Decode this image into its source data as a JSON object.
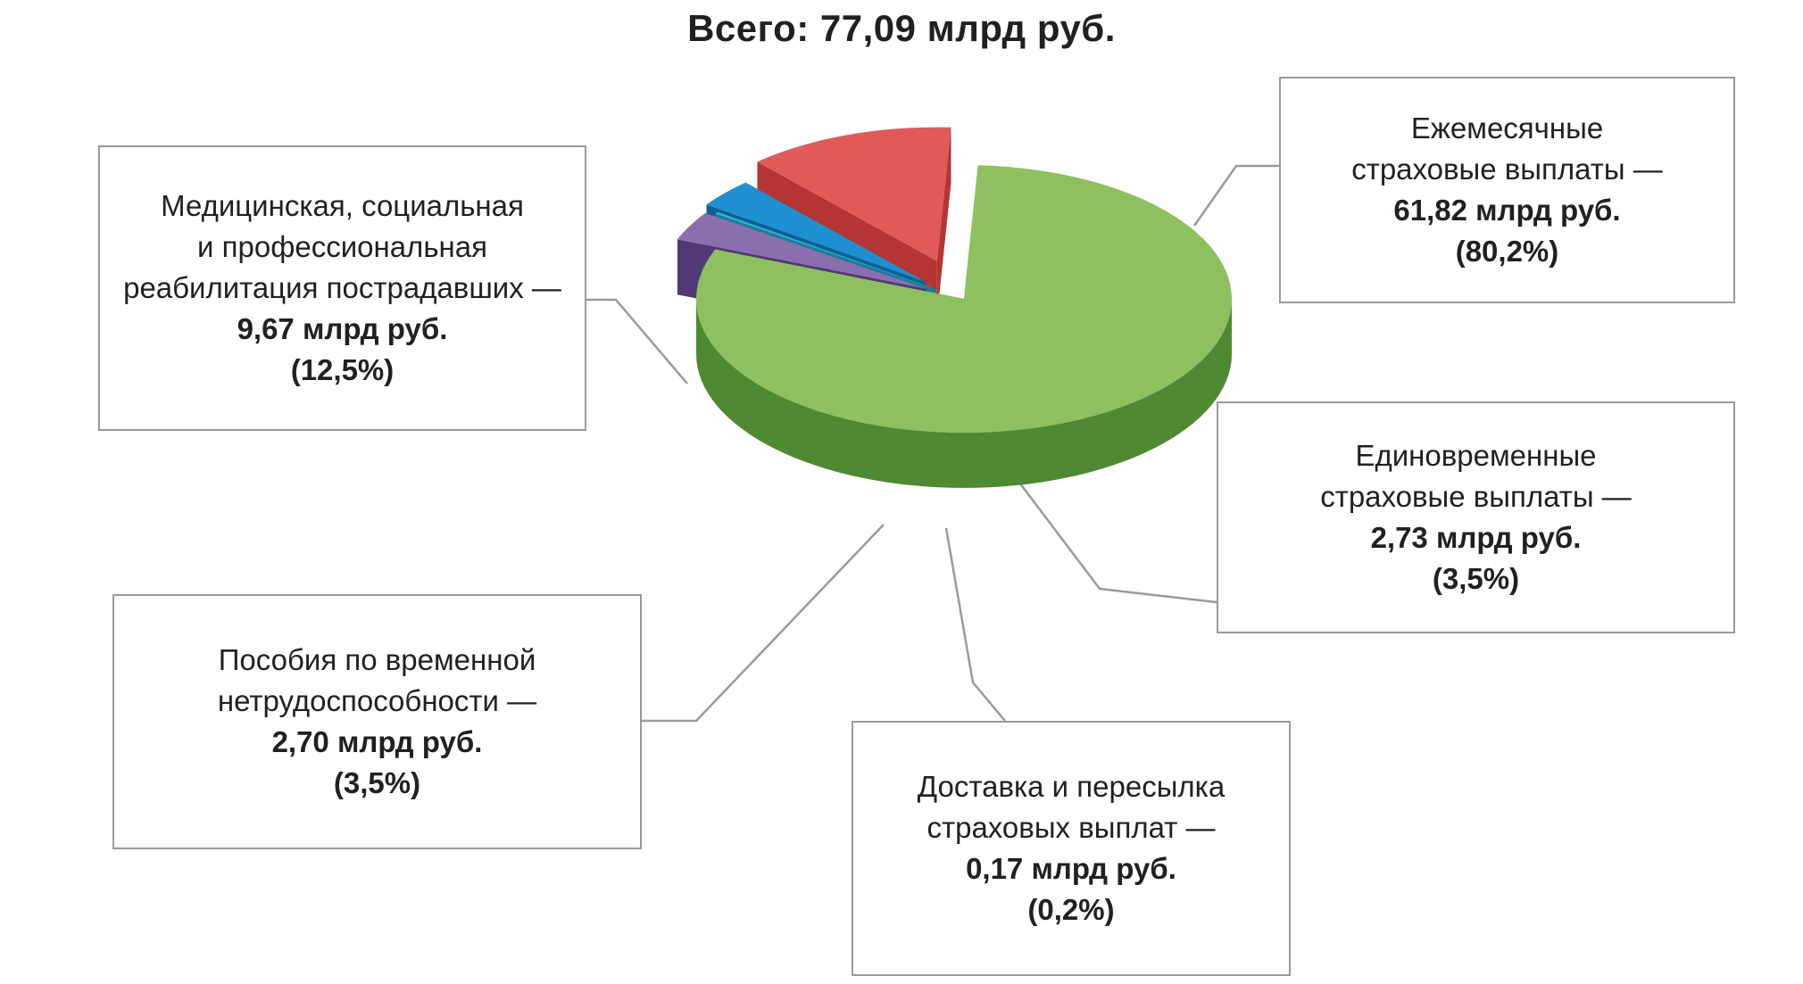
{
  "chart_data": {
    "type": "pie",
    "title": "Всего: 77,09 млрд руб.",
    "unit": "млрд руб.",
    "slices": [
      {
        "label": "Ежемесячные страховые выплаты —",
        "value": 61.82,
        "value_text": "61,82 млрд руб.",
        "percent_text": "(80,2%)",
        "color": "#8ec060",
        "side_color": "#4f8a33"
      },
      {
        "label": "Единовременные страховые выплаты —",
        "value": 2.73,
        "value_text": "2,73 млрд руб.",
        "percent_text": "(3,5%)",
        "color": "#8a6fae",
        "side_color": "#4f3a76"
      },
      {
        "label": "Доставка и пересылка страховых выплат —",
        "value": 0.17,
        "value_text": "0,17 млрд руб.",
        "percent_text": "(0,2%)",
        "color": "#2fb5d6",
        "side_color": "#1a7f9a"
      },
      {
        "label": "Пособия по временной нетрудоспособности —",
        "value": 2.7,
        "value_text": "2,70 млрд руб.",
        "percent_text": "(3,5%)",
        "color": "#1f8fd0",
        "side_color": "#0f5f92"
      },
      {
        "label": "Медицинская, социальная и профессиональная реабилитация пострадавших —",
        "value": 9.67,
        "value_text": "9,67 млрд руб.",
        "percent_text": "(12,5%)",
        "color": "#e05a5a",
        "side_color": "#b53535"
      }
    ]
  },
  "callouts": {
    "monthly": {
      "l1": "Ежемесячные",
      "l2": "страховые выплаты —"
    },
    "lump": {
      "l1": "Единовременные",
      "l2": "страховые выплаты —"
    },
    "delivery": {
      "l1": "Доставка и пересылка",
      "l2": "страховых выплат —"
    },
    "temp": {
      "l1": "Пособия по временной",
      "l2": "нетрудоспособности —"
    },
    "medical": {
      "l1": "Медицинская, социальная",
      "l2": "и профессиональная",
      "l3": "реабилитация пострадавших —"
    }
  }
}
